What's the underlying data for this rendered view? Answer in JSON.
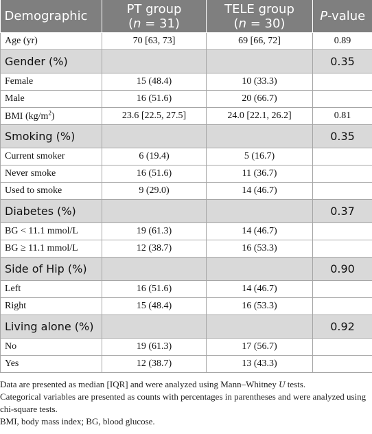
{
  "table": {
    "header": [
      [
        "Demographic"
      ],
      [
        "PT group",
        [
          "(",
          {
            "i": "n"
          },
          " = 31)"
        ]
      ],
      [
        "TELE group",
        [
          "(",
          {
            "i": "n"
          },
          " = 30)"
        ]
      ],
      [
        [
          {
            "i": "P"
          },
          "-value"
        ]
      ]
    ],
    "rows": [
      [
        "Age (yr)",
        "70 [63, 73]",
        "69 [66, 72]",
        "0.89"
      ],
      [
        "Gender (%)",
        null,
        null,
        "0.35"
      ],
      [
        "Female",
        "15 (48.4)",
        "10 (33.3)",
        null
      ],
      [
        "Male",
        "16 (51.6)",
        "20 (66.7)",
        null
      ],
      [
        [
          "BMI (kg/m",
          {
            "sup": "2"
          },
          ")"
        ],
        "23.6 [22.5, 27.5]",
        "24.0 [22.1, 26.2]",
        "0.81"
      ],
      [
        "Smoking (%)",
        null,
        null,
        "0.35"
      ],
      [
        "Current smoker",
        "6 (19.4)",
        "5 (16.7)",
        null
      ],
      [
        "Never smoke",
        "16 (51.6)",
        "11 (36.7)",
        null
      ],
      [
        "Used to smoke",
        "9 (29.0)",
        "14 (46.7)",
        null
      ],
      [
        "Diabetes (%)",
        null,
        null,
        "0.37"
      ],
      [
        "BG < 11.1 mmol/L",
        "19 (61.3)",
        "14 (46.7)",
        null
      ],
      [
        "BG ≥ 11.1 mmol/L",
        "12 (38.7)",
        "16 (53.3)",
        null
      ],
      [
        "Side of Hip (%)",
        null,
        null,
        "0.90"
      ],
      [
        "Left",
        "16 (51.6)",
        "14 (46.7)",
        null
      ],
      [
        "Right",
        "15 (48.4)",
        "16 (53.3)",
        null
      ],
      [
        "Living alone (%)",
        null,
        null,
        "0.92"
      ],
      [
        "No",
        "19 (61.3)",
        "17 (56.7)",
        null
      ],
      [
        "Yes",
        "12 (38.7)",
        "13 (43.3)",
        null
      ]
    ]
  },
  "footnotes": [
    [
      "Data are presented as median [IQR] and were analyzed using Mann–Whitney ",
      {
        "i": "U"
      },
      " tests."
    ],
    "Categorical variables are presented as counts with percentages in parentheses and were analyzed using chi-square tests.",
    "BMI, body mass index; BG, blood glucose."
  ]
}
